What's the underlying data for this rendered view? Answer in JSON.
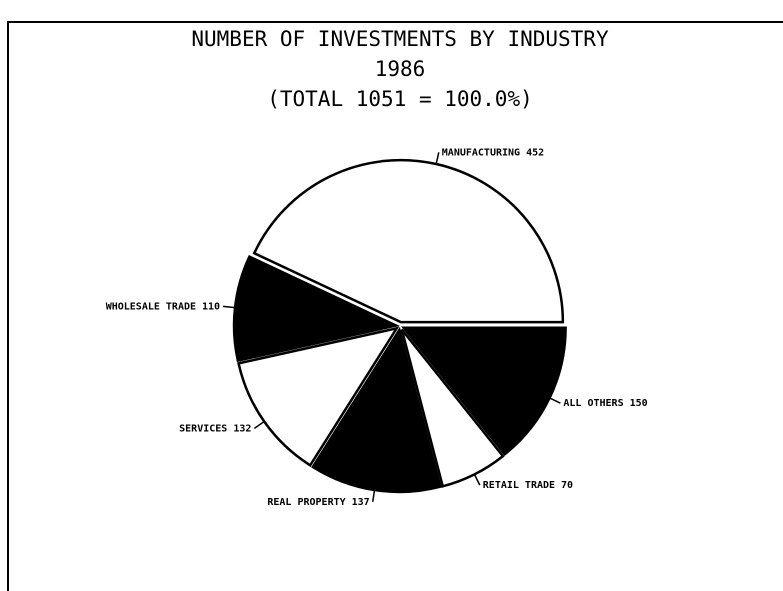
{
  "chart_data": {
    "type": "pie",
    "title": "NUMBER OF INVESTMENTS BY INDUSTRY",
    "subtitle": "1986",
    "total_label": "(TOTAL 1051 = 100.0%)",
    "categories": [
      "MANUFACTURING",
      "WHOLESALE TRADE",
      "SERVICES",
      "REAL PROPERTY",
      "RETAIL TRADE",
      "ALL OTHERS"
    ],
    "values": [
      452,
      110,
      132,
      137,
      70,
      150
    ],
    "colors": [
      "#ffffff",
      "#000000",
      "#ffffff",
      "#000000",
      "#ffffff",
      "#000000"
    ],
    "start_angle": 0,
    "direction": "counterclockwise"
  }
}
